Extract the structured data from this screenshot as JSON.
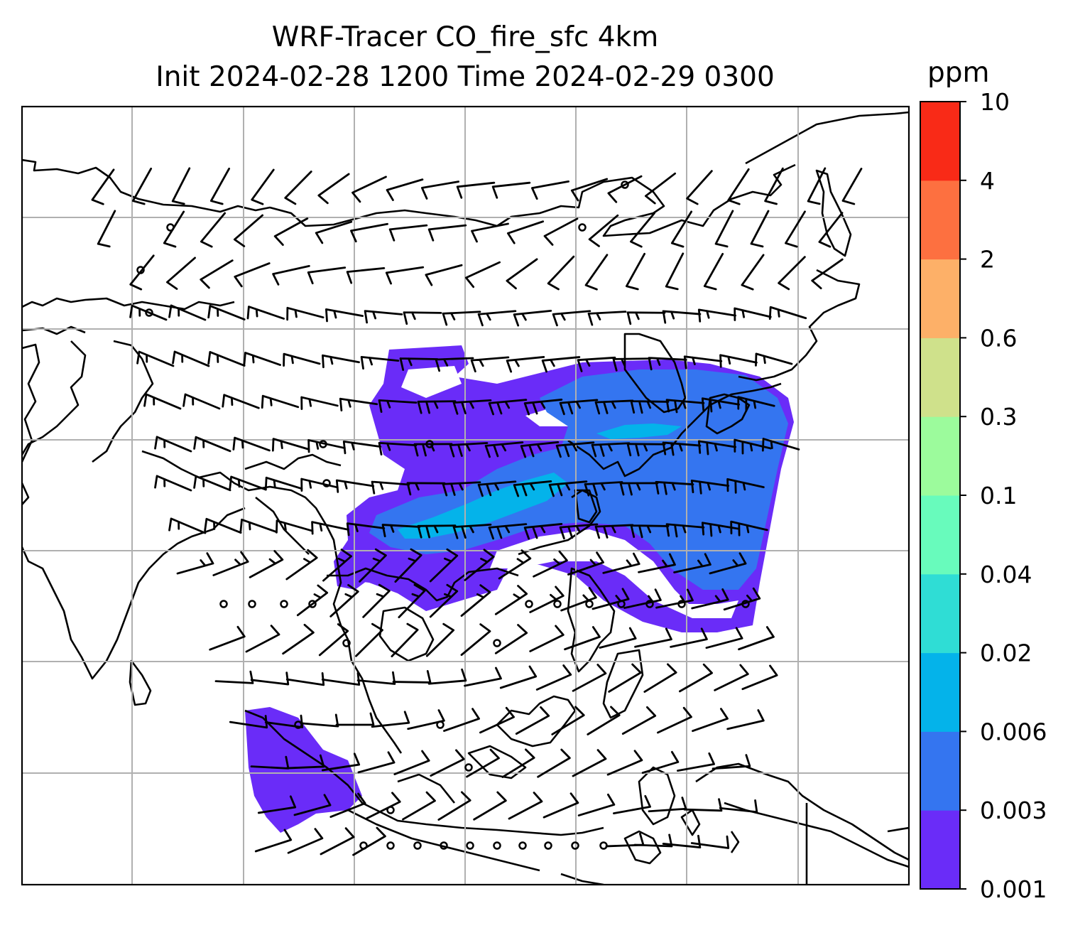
{
  "title": {
    "line1": "WRF-Tracer CO_fire_sfc 4km",
    "line2": "Init 2024-02-28 1200 Time 2024-02-29 0300"
  },
  "colorbar": {
    "units": "ppm",
    "levels": [
      "0.001",
      "0.003",
      "0.006",
      "0.02",
      "0.04",
      "0.1",
      "0.3",
      "0.6",
      "2",
      "4",
      "10"
    ],
    "colors": [
      "#6a2cf8",
      "#3475f0",
      "#04b3ea",
      "#2fddd5",
      "#68fbbc",
      "#9cfb9c",
      "#cfe18b",
      "#fdb068",
      "#fd7040",
      "#f92a17"
    ]
  },
  "map": {
    "variable": "CO_fire_sfc",
    "wind_symbol": "wind-barb",
    "calm_symbol": "calm-circle",
    "colors": {
      "coastline": "#000000",
      "gridline": "#b0b0b0",
      "plume_low": "#6a2cf8",
      "plume_mid": "#3475f0",
      "plume_high": "#04b3ea"
    }
  }
}
